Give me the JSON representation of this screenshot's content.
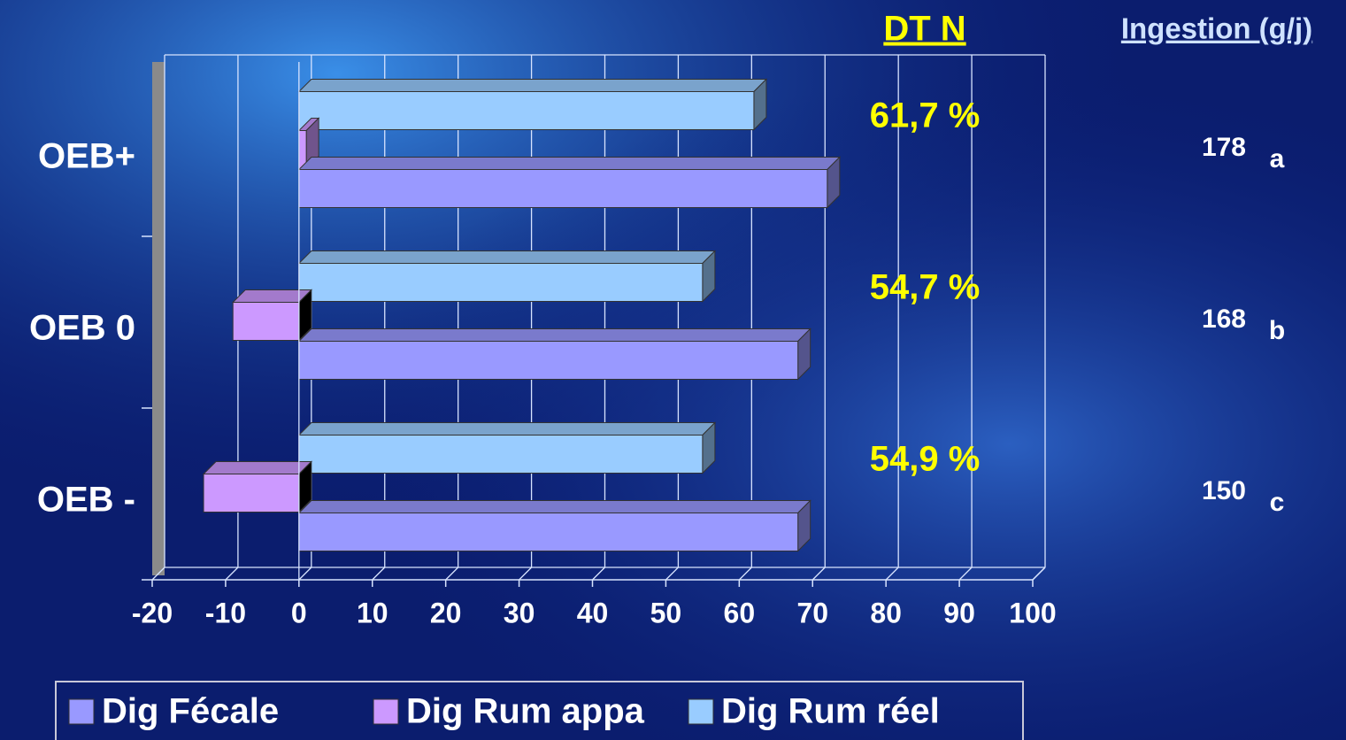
{
  "chart_data": {
    "type": "bar",
    "orientation": "horizontal",
    "categories": [
      "OEB+",
      "OEB 0",
      "OEB -"
    ],
    "series": [
      {
        "name": "Dig Fécale",
        "color": "#9999ff",
        "values": [
          72,
          68,
          68
        ]
      },
      {
        "name": "Dig Rum appa",
        "color": "#cc99ff",
        "values": [
          1,
          -9,
          -13
        ]
      },
      {
        "name": "Dig Rum réel",
        "color": "#99ccff",
        "values": [
          62,
          55,
          55
        ]
      }
    ],
    "xlim": [
      -20,
      100
    ],
    "xticks": [
      -20,
      -10,
      0,
      10,
      20,
      30,
      40,
      50,
      60,
      70,
      80,
      90,
      100
    ],
    "grid": true,
    "legend": "bottom",
    "annotations": {
      "dt_n_title": "DT N",
      "dt_n": [
        "61,7 %",
        "54,7 %",
        "54,9 %"
      ],
      "ingestion_title": "Ingestion (g/j)",
      "ingestion": [
        178,
        168,
        150
      ],
      "ingestion_groups": [
        "a",
        "b",
        "c"
      ]
    }
  }
}
